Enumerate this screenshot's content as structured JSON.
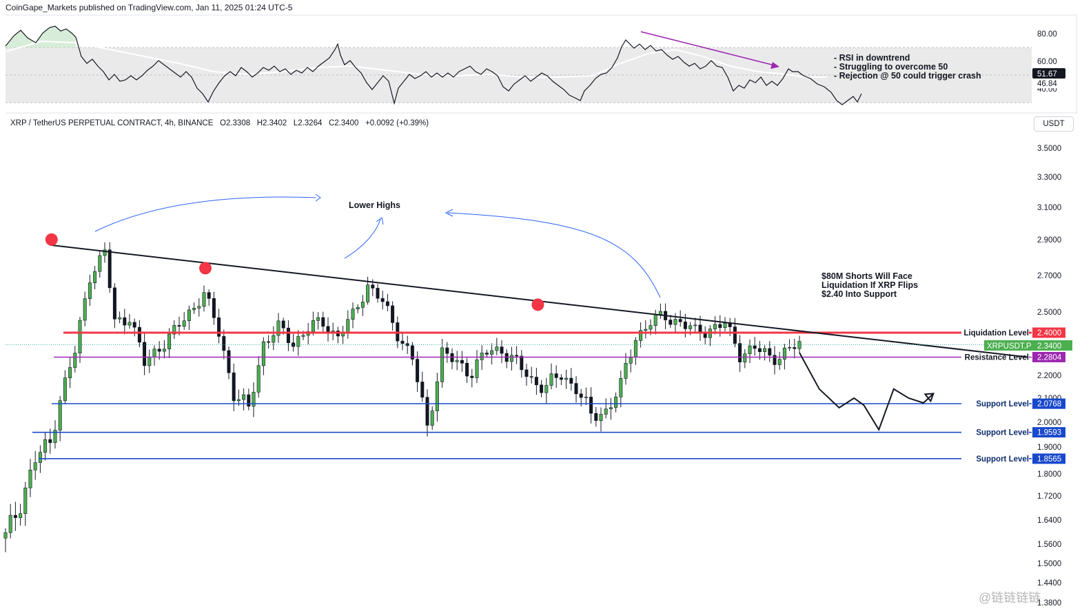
{
  "header": {
    "publisher": "CoinGape_Markets published on TradingView.com, Jan 11, 2025 01:24 UTC-5",
    "symbol": "XRP / TetherUS PERPETUAL CONTRACT, 4h, BINANCE",
    "ohlc": {
      "open": "O2.3308",
      "high": "H2.3402",
      "low": "L2.3264",
      "close": "C2.3400",
      "change": "+0.0092 (+0.39%)"
    },
    "unit": "USDT"
  },
  "rsi_panel": {
    "ticks": [
      "80.00",
      "60.00",
      "40.00"
    ],
    "current_value": "51.67",
    "ma_value": "46.84",
    "notes": [
      "- RSI in downtrend",
      "- Struggling to overcome 50",
      "- Rejection @ 50 could trigger crash"
    ]
  },
  "chart_data": {
    "type": "line",
    "symbol": "XRPUSDT.P",
    "y_axis_ticks": [
      "3.5000",
      "3.3000",
      "3.1000",
      "2.9000",
      "2.7000",
      "2.5000",
      "2.2000",
      "2.1000",
      "2.0000",
      "1.9000",
      "1.8000",
      "1.7200",
      "1.6400",
      "1.5600",
      "1.5000",
      "1.4400",
      "1.3800"
    ],
    "ylim": [
      1.38,
      3.62
    ],
    "price_path": [
      [
        0,
        1.58
      ],
      [
        3,
        1.7
      ],
      [
        6,
        1.85
      ],
      [
        9,
        1.92
      ],
      [
        11,
        2.1
      ],
      [
        14,
        2.3
      ],
      [
        17,
        2.7
      ],
      [
        20,
        2.83
      ],
      [
        22,
        2.45
      ],
      [
        25,
        2.48
      ],
      [
        28,
        2.25
      ],
      [
        31,
        2.33
      ],
      [
        34,
        2.4
      ],
      [
        37,
        2.5
      ],
      [
        40,
        2.6
      ],
      [
        43,
        2.4
      ],
      [
        46,
        2.12
      ],
      [
        49,
        2.05
      ],
      [
        52,
        2.35
      ],
      [
        55,
        2.42
      ],
      [
        58,
        2.35
      ],
      [
        61,
        2.42
      ],
      [
        64,
        2.45
      ],
      [
        67,
        2.38
      ],
      [
        70,
        2.48
      ],
      [
        73,
        2.65
      ],
      [
        76,
        2.55
      ],
      [
        79,
        2.4
      ],
      [
        82,
        2.27
      ],
      [
        85,
        1.98
      ],
      [
        88,
        2.3
      ],
      [
        91,
        2.25
      ],
      [
        94,
        2.22
      ],
      [
        97,
        2.3
      ],
      [
        100,
        2.32
      ],
      [
        103,
        2.25
      ],
      [
        106,
        2.18
      ],
      [
        109,
        2.15
      ],
      [
        112,
        2.2
      ],
      [
        115,
        2.15
      ],
      [
        118,
        2.02
      ],
      [
        121,
        2.05
      ],
      [
        124,
        2.15
      ],
      [
        127,
        2.38
      ],
      [
        130,
        2.45
      ],
      [
        133,
        2.48
      ],
      [
        136,
        2.45
      ],
      [
        139,
        2.4
      ],
      [
        142,
        2.42
      ],
      [
        145,
        2.44
      ],
      [
        148,
        2.3
      ],
      [
        151,
        2.32
      ],
      [
        154,
        2.28
      ],
      [
        157,
        2.3
      ],
      [
        160,
        2.34
      ]
    ],
    "trendline": {
      "label": "",
      "points": [
        [
          9,
          2.87
        ],
        [
          166,
          2.28
        ]
      ]
    },
    "levels": [
      {
        "name": "Liquidation Level",
        "value": 2.4,
        "label": "2.4000",
        "color": "#f23645"
      },
      {
        "name": "Resistance Level",
        "value": 2.2804,
        "label": "2.2804",
        "color": "#9c27b0"
      },
      {
        "name": "Support Level",
        "value": 2.0768,
        "label": "2.0768",
        "color": "#1848cc"
      },
      {
        "name": "Support Level",
        "value": 1.9593,
        "label": "1.9593",
        "color": "#1848cc"
      },
      {
        "name": "Support Level",
        "value": 1.8565,
        "label": "1.8565",
        "color": "#1848cc"
      }
    ],
    "current_price": {
      "symbol": "XRPUSDT.P",
      "value": 2.34,
      "label": "2.3400"
    },
    "swing_highs": [
      [
        9,
        2.87
      ],
      [
        40,
        2.71
      ],
      [
        107,
        2.51
      ]
    ],
    "projection": [
      [
        160,
        2.3
      ],
      [
        164,
        2.14
      ],
      [
        168,
        2.06
      ],
      [
        171,
        2.1
      ],
      [
        173,
        2.07
      ],
      [
        176,
        1.97
      ],
      [
        179,
        2.14
      ],
      [
        182,
        2.1
      ],
      [
        185,
        2.08
      ],
      [
        187,
        2.12
      ]
    ],
    "annotations": {
      "lower_highs": "Lower Highs",
      "shorts": [
        "$80M Shorts Will Face",
        "Liquidation If XRP Flips",
        "$2.40 Into Support"
      ]
    }
  },
  "colors": {
    "up": "#26a69a",
    "down": "#131722",
    "candle_up": "#4caf50",
    "liquidation": "#f23645",
    "resistance": "#9c27b0",
    "support": "#1848cc",
    "rsi_line": "#131722",
    "rsi_band": "#e6e6e6",
    "arrow_blue": "#2962ff",
    "arrow_purple": "#9c27b0"
  },
  "watermark": "@链链链链"
}
